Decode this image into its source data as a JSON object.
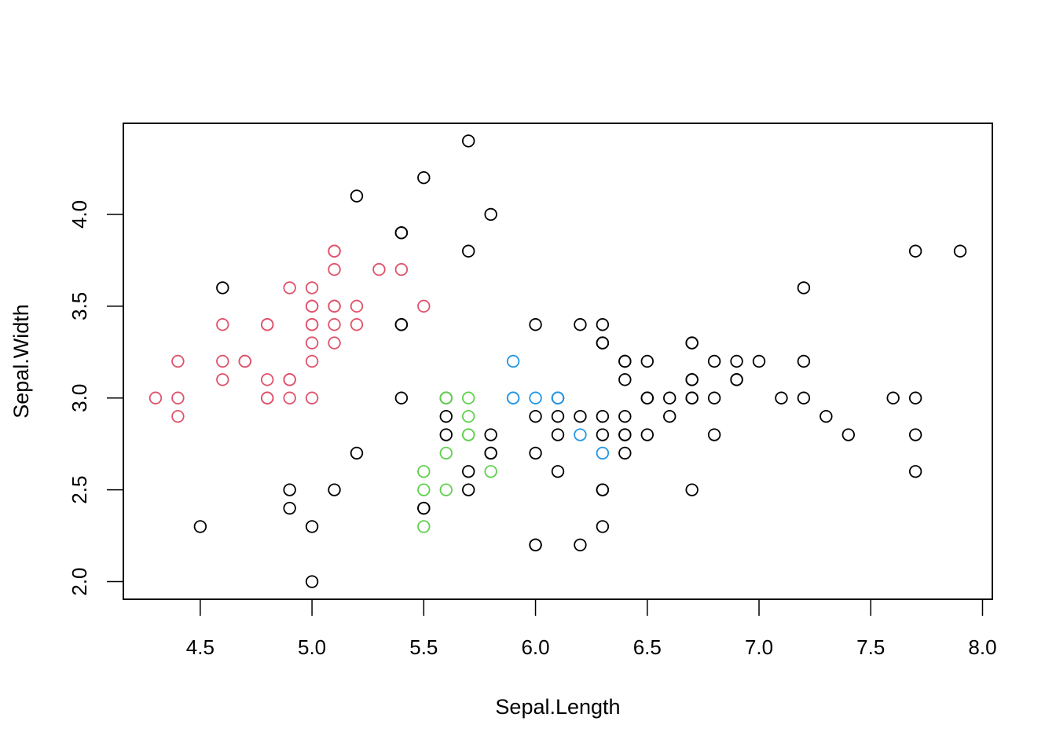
{
  "chart_data": {
    "type": "scatter",
    "title": "",
    "xlabel": "Sepal.Length",
    "ylabel": "Sepal.Width",
    "xlim": [
      4.156,
      8.044
    ],
    "ylim": [
      1.904,
      4.496
    ],
    "xticks": [
      4.5,
      5.0,
      5.5,
      6.0,
      6.5,
      7.0,
      7.5,
      8.0
    ],
    "xtick_labels": [
      "4.5",
      "5.0",
      "5.5",
      "6.0",
      "6.5",
      "7.0",
      "7.5",
      "8.0"
    ],
    "yticks": [
      2.0,
      2.5,
      3.0,
      3.5,
      4.0
    ],
    "ytick_labels": [
      "2.0",
      "2.5",
      "3.0",
      "3.5",
      "4.0"
    ],
    "grid": false,
    "legend": null,
    "marker": "open-circle",
    "colors": {
      "black": "#000000",
      "pink": "#DF536B",
      "green": "#61D04F",
      "blue": "#2297E6"
    },
    "series": [
      {
        "name": "pink",
        "color": "#DF536B",
        "points": [
          [
            4.3,
            3.0
          ],
          [
            4.4,
            2.9
          ],
          [
            4.4,
            3.0
          ],
          [
            4.4,
            3.2
          ],
          [
            4.6,
            3.1
          ],
          [
            4.6,
            3.2
          ],
          [
            4.6,
            3.4
          ],
          [
            4.7,
            3.2
          ],
          [
            4.7,
            3.2
          ],
          [
            4.8,
            3.0
          ],
          [
            4.8,
            3.0
          ],
          [
            4.8,
            3.1
          ],
          [
            4.8,
            3.4
          ],
          [
            4.8,
            3.4
          ],
          [
            4.9,
            3.0
          ],
          [
            4.9,
            3.1
          ],
          [
            4.9,
            3.1
          ],
          [
            4.9,
            3.6
          ],
          [
            5.0,
            3.0
          ],
          [
            5.0,
            3.2
          ],
          [
            5.0,
            3.3
          ],
          [
            5.0,
            3.4
          ],
          [
            5.0,
            3.4
          ],
          [
            5.0,
            3.5
          ],
          [
            5.0,
            3.5
          ],
          [
            5.0,
            3.6
          ],
          [
            5.1,
            3.3
          ],
          [
            5.1,
            3.4
          ],
          [
            5.1,
            3.5
          ],
          [
            5.1,
            3.5
          ],
          [
            5.1,
            3.7
          ],
          [
            5.1,
            3.8
          ],
          [
            5.1,
            3.8
          ],
          [
            5.2,
            3.4
          ],
          [
            5.2,
            3.5
          ],
          [
            5.3,
            3.7
          ],
          [
            5.4,
            3.7
          ],
          [
            5.5,
            3.5
          ]
        ]
      },
      {
        "name": "green",
        "color": "#61D04F",
        "points": [
          [
            5.5,
            2.3
          ],
          [
            5.5,
            2.5
          ],
          [
            5.5,
            2.6
          ],
          [
            5.6,
            2.5
          ],
          [
            5.6,
            2.7
          ],
          [
            5.6,
            3.0
          ],
          [
            5.6,
            3.0
          ],
          [
            5.7,
            2.8
          ],
          [
            5.7,
            2.8
          ],
          [
            5.7,
            2.9
          ],
          [
            5.7,
            3.0
          ],
          [
            5.8,
            2.6
          ]
        ]
      },
      {
        "name": "blue",
        "color": "#2297E6",
        "points": [
          [
            5.9,
            3.0
          ],
          [
            5.9,
            3.0
          ],
          [
            5.9,
            3.2
          ],
          [
            6.0,
            3.0
          ],
          [
            6.1,
            3.0
          ],
          [
            6.1,
            3.0
          ],
          [
            6.2,
            2.8
          ],
          [
            6.3,
            2.7
          ]
        ]
      },
      {
        "name": "black",
        "color": "#000000",
        "points": [
          [
            4.5,
            2.3
          ],
          [
            4.6,
            3.6
          ],
          [
            4.9,
            2.4
          ],
          [
            4.9,
            2.5
          ],
          [
            5.0,
            2.0
          ],
          [
            5.0,
            2.3
          ],
          [
            5.1,
            2.5
          ],
          [
            5.2,
            2.7
          ],
          [
            5.2,
            4.1
          ],
          [
            5.4,
            3.0
          ],
          [
            5.4,
            3.4
          ],
          [
            5.4,
            3.4
          ],
          [
            5.4,
            3.9
          ],
          [
            5.4,
            3.9
          ],
          [
            5.5,
            2.4
          ],
          [
            5.5,
            2.4
          ],
          [
            5.5,
            4.2
          ],
          [
            5.6,
            2.8
          ],
          [
            5.6,
            2.9
          ],
          [
            5.6,
            3.0
          ],
          [
            5.7,
            2.5
          ],
          [
            5.7,
            2.6
          ],
          [
            5.7,
            3.8
          ],
          [
            5.7,
            4.4
          ],
          [
            5.8,
            2.7
          ],
          [
            5.8,
            2.7
          ],
          [
            5.8,
            2.8
          ],
          [
            5.8,
            4.0
          ],
          [
            6.0,
            2.2
          ],
          [
            6.0,
            2.2
          ],
          [
            6.0,
            2.7
          ],
          [
            6.0,
            2.9
          ],
          [
            6.0,
            3.4
          ],
          [
            6.1,
            2.6
          ],
          [
            6.1,
            2.8
          ],
          [
            6.1,
            2.9
          ],
          [
            6.1,
            3.0
          ],
          [
            6.2,
            2.2
          ],
          [
            6.2,
            2.9
          ],
          [
            6.2,
            3.4
          ],
          [
            6.3,
            2.3
          ],
          [
            6.3,
            2.5
          ],
          [
            6.3,
            2.5
          ],
          [
            6.3,
            2.8
          ],
          [
            6.3,
            2.9
          ],
          [
            6.3,
            3.3
          ],
          [
            6.3,
            3.3
          ],
          [
            6.3,
            3.4
          ],
          [
            6.4,
            2.7
          ],
          [
            6.4,
            2.8
          ],
          [
            6.4,
            2.8
          ],
          [
            6.4,
            2.9
          ],
          [
            6.4,
            3.1
          ],
          [
            6.4,
            3.2
          ],
          [
            6.4,
            3.2
          ],
          [
            6.5,
            2.8
          ],
          [
            6.5,
            3.0
          ],
          [
            6.5,
            3.0
          ],
          [
            6.5,
            3.2
          ],
          [
            6.6,
            2.9
          ],
          [
            6.6,
            3.0
          ],
          [
            6.7,
            2.5
          ],
          [
            6.7,
            3.0
          ],
          [
            6.7,
            3.0
          ],
          [
            6.7,
            3.1
          ],
          [
            6.7,
            3.1
          ],
          [
            6.7,
            3.3
          ],
          [
            6.7,
            3.3
          ],
          [
            6.8,
            2.8
          ],
          [
            6.8,
            3.0
          ],
          [
            6.8,
            3.2
          ],
          [
            6.9,
            3.1
          ],
          [
            6.9,
            3.1
          ],
          [
            6.9,
            3.2
          ],
          [
            7.0,
            3.2
          ],
          [
            7.1,
            3.0
          ],
          [
            7.2,
            3.0
          ],
          [
            7.2,
            3.2
          ],
          [
            7.2,
            3.6
          ],
          [
            7.3,
            2.9
          ],
          [
            7.4,
            2.8
          ],
          [
            7.6,
            3.0
          ],
          [
            7.7,
            2.6
          ],
          [
            7.7,
            2.8
          ],
          [
            7.7,
            3.0
          ],
          [
            7.7,
            3.8
          ],
          [
            7.9,
            3.8
          ]
        ]
      }
    ]
  },
  "plot": {
    "x_axis_title": "Sepal.Length",
    "y_axis_title": "Sepal.Width"
  }
}
